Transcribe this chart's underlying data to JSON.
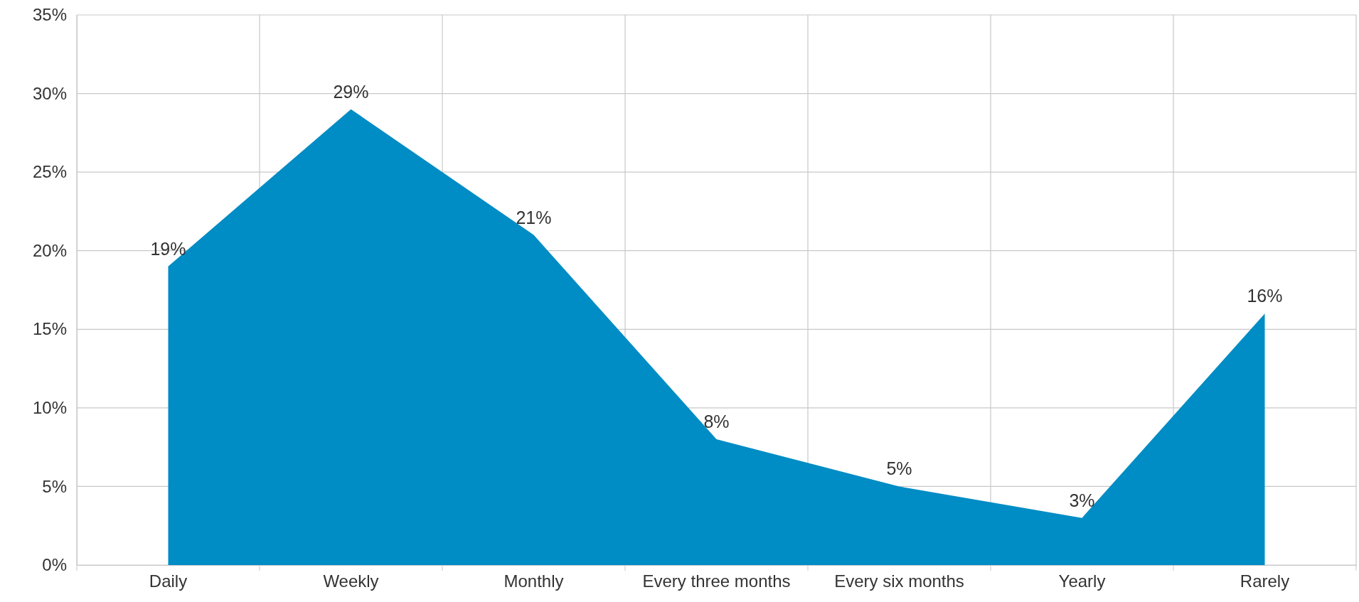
{
  "chart_data": {
    "type": "area",
    "categories": [
      "Daily",
      "Weekly",
      "Monthly",
      "Every three months",
      "Every six months",
      "Yearly",
      "Rarely"
    ],
    "values": [
      19,
      29,
      21,
      8,
      5,
      3,
      16
    ],
    "value_labels": [
      "19%",
      "29%",
      "21%",
      "8%",
      "5%",
      "3%",
      "16%"
    ],
    "color": "#008cc4",
    "ylim": [
      0,
      35
    ],
    "yticks": [
      {
        "value": 0,
        "label": "0%"
      },
      {
        "value": 5,
        "label": "5%"
      },
      {
        "value": 10,
        "label": "10%"
      },
      {
        "value": 15,
        "label": "15%"
      },
      {
        "value": 20,
        "label": "20%"
      },
      {
        "value": 25,
        "label": "25%"
      },
      {
        "value": 30,
        "label": "30%"
      },
      {
        "value": 35,
        "label": "35%"
      }
    ],
    "grid": true
  }
}
